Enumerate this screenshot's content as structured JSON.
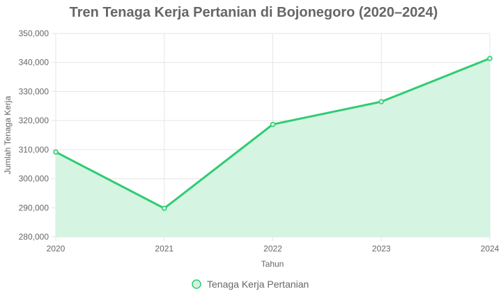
{
  "chart_data": {
    "type": "area",
    "title": "Tren Tenaga Kerja Pertanian di Bojonegoro (2020–2024)",
    "xlabel": "Tahun",
    "ylabel": "Jumlah Tenaga Kerja",
    "categories": [
      "2020",
      "2021",
      "2022",
      "2023",
      "2024"
    ],
    "series": [
      {
        "name": "Tenaga Kerja Pertanian",
        "values": [
          309200,
          289800,
          318700,
          326500,
          341400
        ],
        "color": "#2ecc71",
        "fill": "#d3f3e0"
      }
    ],
    "ylim": [
      280000,
      350000
    ],
    "y_ticks": [
      280000,
      290000,
      300000,
      310000,
      320000,
      330000,
      340000,
      350000
    ],
    "y_tick_labels": [
      "280,000",
      "290,000",
      "300,000",
      "310,000",
      "320,000",
      "330,000",
      "340,000",
      "350,000"
    ],
    "grid": true,
    "legend": "bottom"
  }
}
